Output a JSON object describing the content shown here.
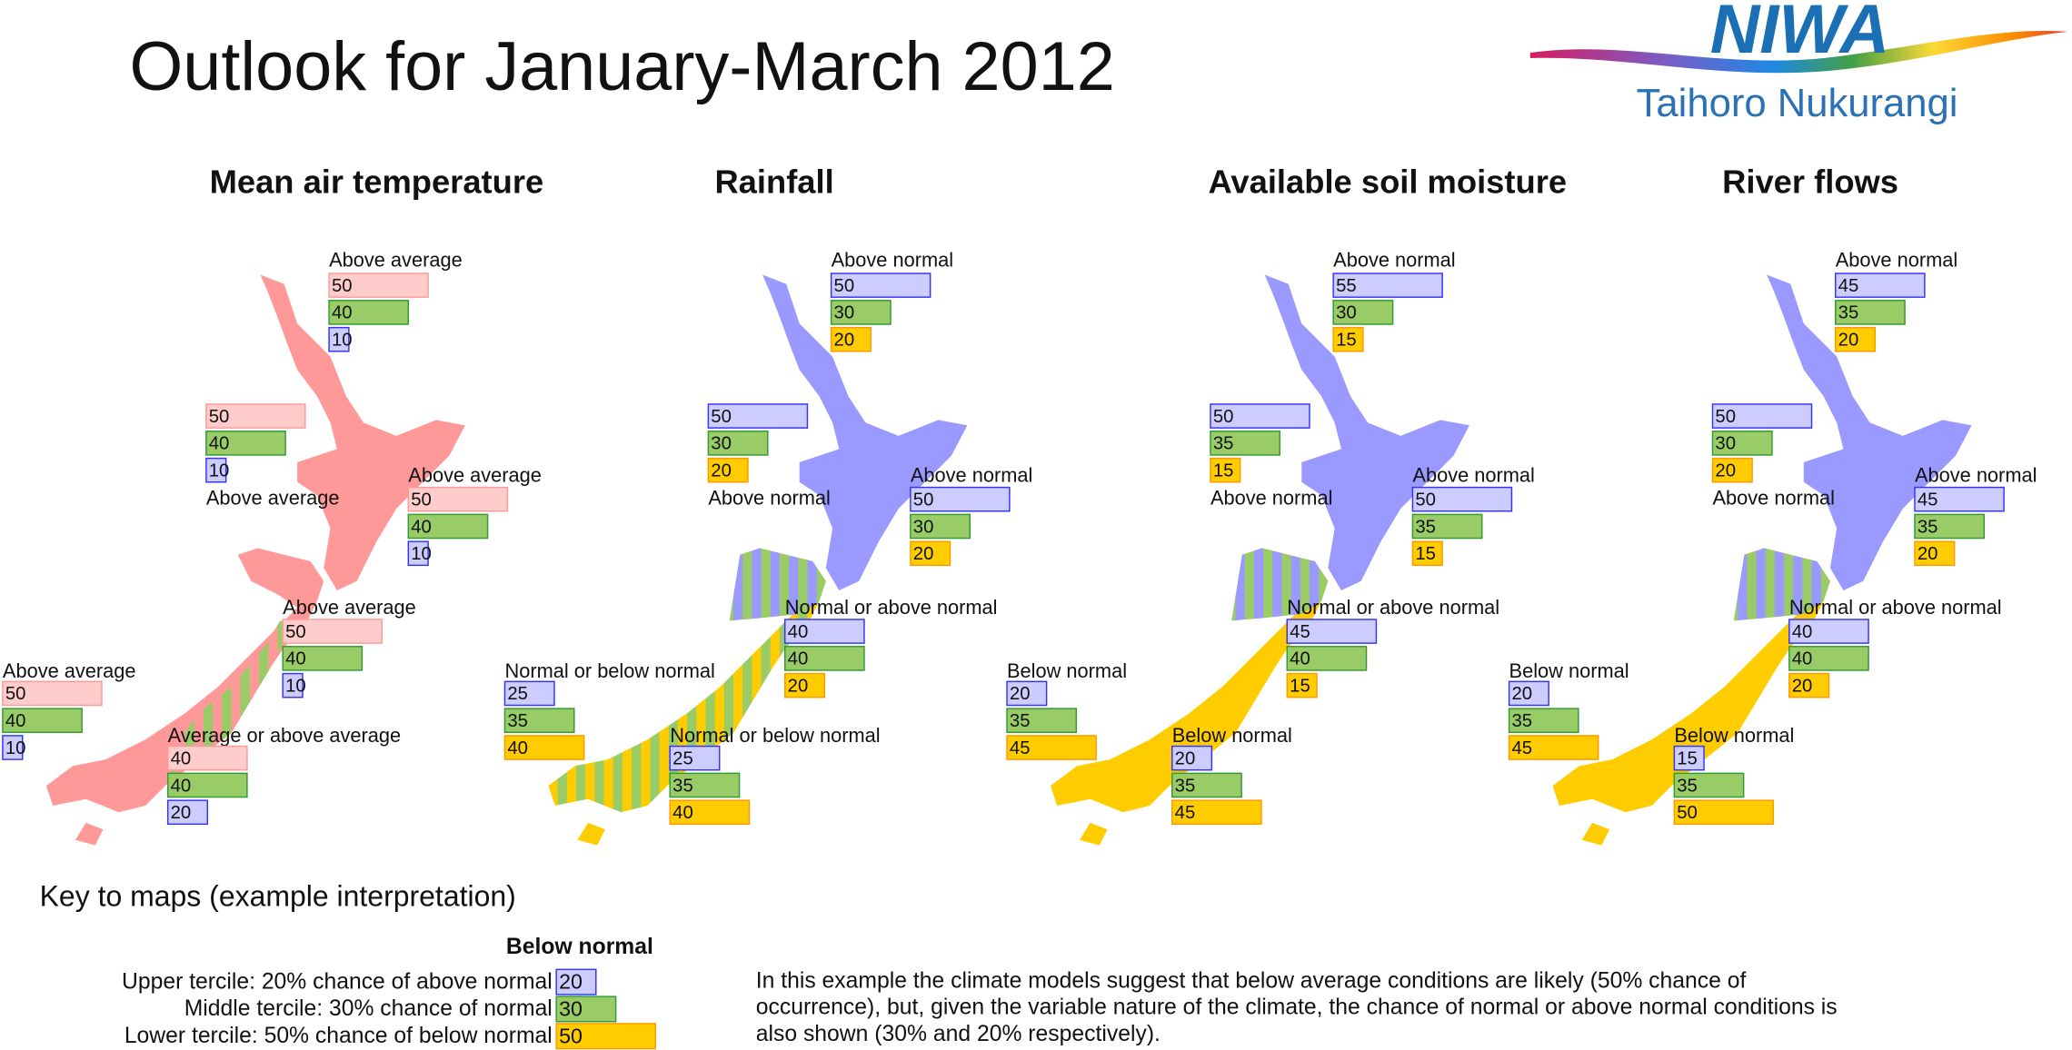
{
  "header": {
    "title": "Outlook for January-March 2012",
    "logo": {
      "name": "NIWA",
      "subtitle": "Taihoro Nukurangi"
    }
  },
  "maps": [
    {
      "title": "Mean air temperature",
      "colors": [
        "#ffcccc",
        "#99cc66",
        "#ccccff"
      ],
      "borders": [
        "#ff9999",
        "#339933",
        "#3333ff"
      ],
      "regions": [
        {
          "label": "Above average",
          "values": [
            50,
            40,
            10
          ]
        },
        {
          "label": "Above average",
          "values": [
            50,
            40,
            10
          ]
        },
        {
          "label": "Above average",
          "values": [
            50,
            40,
            10
          ]
        },
        {
          "label": "Above average",
          "values": [
            50,
            40,
            10
          ]
        },
        {
          "label": "Above average",
          "values": [
            50,
            40,
            10
          ]
        },
        {
          "label": "Average or above average",
          "values": [
            40,
            40,
            20
          ]
        }
      ]
    },
    {
      "title": "Rainfall",
      "colors": [
        "#ccccff",
        "#99cc66",
        "#ffcc00"
      ],
      "borders": [
        "#3333ff",
        "#339933",
        "#ff9900"
      ],
      "regions": [
        {
          "label": "Above normal",
          "values": [
            50,
            30,
            20
          ]
        },
        {
          "label": "Above normal",
          "values": [
            50,
            30,
            20
          ]
        },
        {
          "label": "Above normal",
          "values": [
            50,
            30,
            20
          ]
        },
        {
          "label": "Normal or above normal",
          "values": [
            40,
            40,
            20
          ]
        },
        {
          "label": "Normal or below normal",
          "values": [
            25,
            35,
            40
          ]
        },
        {
          "label": "Normal or below normal",
          "values": [
            25,
            35,
            40
          ]
        }
      ]
    },
    {
      "title": "Available soil moisture",
      "colors": [
        "#ccccff",
        "#99cc66",
        "#ffcc00"
      ],
      "borders": [
        "#3333ff",
        "#339933",
        "#ff9900"
      ],
      "regions": [
        {
          "label": "Above normal",
          "values": [
            55,
            30,
            15
          ]
        },
        {
          "label": "Above normal",
          "values": [
            50,
            35,
            15
          ]
        },
        {
          "label": "Above normal",
          "values": [
            50,
            35,
            15
          ]
        },
        {
          "label": "Normal or above normal",
          "values": [
            45,
            40,
            15
          ]
        },
        {
          "label": "Below normal",
          "values": [
            20,
            35,
            45
          ]
        },
        {
          "label": "Below normal",
          "values": [
            20,
            35,
            45
          ]
        }
      ]
    },
    {
      "title": "River flows",
      "colors": [
        "#ccccff",
        "#99cc66",
        "#ffcc00"
      ],
      "borders": [
        "#3333ff",
        "#339933",
        "#ff9900"
      ],
      "regions": [
        {
          "label": "Above normal",
          "values": [
            45,
            35,
            20
          ]
        },
        {
          "label": "Above normal",
          "values": [
            50,
            30,
            20
          ]
        },
        {
          "label": "Above normal",
          "values": [
            45,
            35,
            20
          ]
        },
        {
          "label": "Normal or above normal",
          "values": [
            40,
            40,
            20
          ]
        },
        {
          "label": "Below normal",
          "values": [
            20,
            35,
            45
          ]
        },
        {
          "label": "Below normal",
          "values": [
            15,
            35,
            50
          ]
        }
      ]
    }
  ],
  "key": {
    "title": "Key to maps (example interpretation)",
    "example_label": "Below normal",
    "colors": [
      "#ccccff",
      "#99cc66",
      "#ffcc00"
    ],
    "borders": [
      "#3333ff",
      "#339933",
      "#ff9900"
    ],
    "rows": [
      {
        "text": "Upper tercile: 20% chance of above normal",
        "value": 20
      },
      {
        "text": "Middle tercile: 30% chance of normal",
        "value": 30
      },
      {
        "text": "Lower tercile: 50% chance of below normal",
        "value": 50
      }
    ],
    "explanation": "In this example the climate models suggest that below average conditions are likely (50% chance of occurrence), but, given the variable nature of the climate, the chance of normal or above normal conditions is also shown (30% and 20% respectively)."
  }
}
